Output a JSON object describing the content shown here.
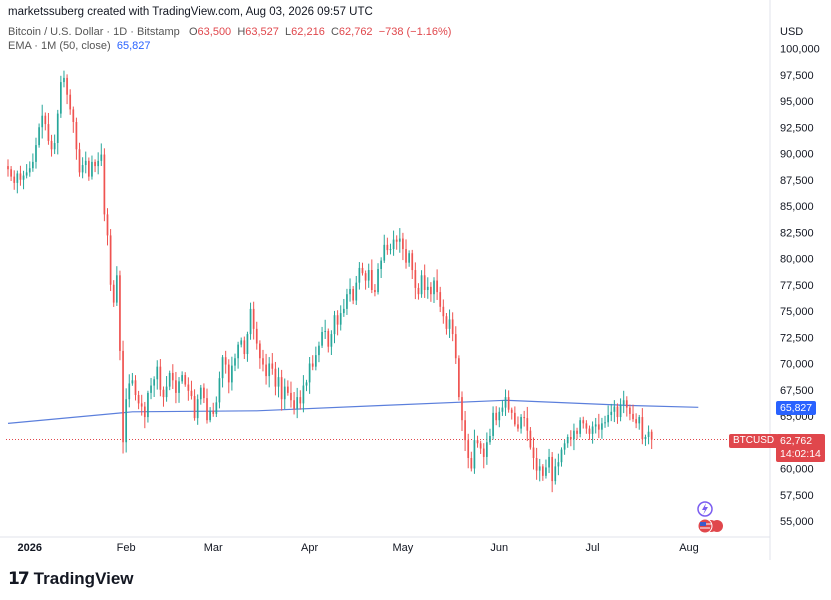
{
  "header": {
    "attribution": "marketssuberg created with TradingView.com, Aug 03, 2026 09:57 UTC",
    "symbol_desc": "Bitcoin / U.S. Dollar · 1D · Bitstamp",
    "ohlc": {
      "o_label": "O",
      "o": "63,500",
      "h_label": "H",
      "h": "63,527",
      "l_label": "L",
      "l": "62,216",
      "c_label": "C",
      "c": "62,762",
      "change": "−738 (−1.16%)"
    },
    "ema_label": "EMA · 1M (50, close)",
    "ema_value": "65,827"
  },
  "price_scale": {
    "currency": "USD"
  },
  "tags": {
    "ema_price": "65,827",
    "ticker": "BTCUSD",
    "last_price": "62,762",
    "countdown": "14:02:14"
  },
  "footer": {
    "brand": "TradingView",
    "brand_mark": "17"
  },
  "colors": {
    "up": "#26a69a",
    "down": "#ef5350",
    "ema": "#5b7fdc",
    "last_line": "#e0474c"
  },
  "chart_data": {
    "type": "candlestick",
    "ylim": [
      52500,
      102000
    ],
    "yticks": [
      55000,
      57500,
      60000,
      62500,
      65000,
      67500,
      70000,
      72500,
      75000,
      77500,
      80000,
      82500,
      85000,
      87500,
      90000,
      92500,
      95000,
      97500,
      100000
    ],
    "yticks_shown": [
      "55,000",
      "57,500",
      "60,000",
      "",
      "65,000",
      "67,500",
      "70,000",
      "72,500",
      "75,000",
      "77,500",
      "80,000",
      "82,500",
      "85,000",
      "87,500",
      "90,000",
      "92,500",
      "95,000",
      "97,500",
      "100,000"
    ],
    "xlabels": [
      {
        "label": "2026",
        "day": 7
      },
      {
        "label": "Feb",
        "day": 38
      },
      {
        "label": "Mar",
        "day": 66
      },
      {
        "label": "Apr",
        "day": 97
      },
      {
        "label": "May",
        "day": 127
      },
      {
        "label": "Jun",
        "day": 158
      },
      {
        "label": "Jul",
        "day": 188
      },
      {
        "label": "Aug",
        "day": 219
      }
    ],
    "xrange_days": [
      0,
      237
    ],
    "close_series": [
      88500,
      87800,
      87200,
      88100,
      87500,
      87900,
      88200,
      88600,
      89200,
      90800,
      92500,
      93600,
      92800,
      91200,
      90400,
      91000,
      93800,
      96800,
      97200,
      95600,
      94200,
      93000,
      90400,
      88200,
      88900,
      89300,
      87800,
      89200,
      88800,
      89300,
      89900,
      84200,
      82200,
      77500,
      75800,
      78400,
      71200,
      62500,
      66600,
      68100,
      68400,
      67000,
      66200,
      65900,
      64900,
      67200,
      67900,
      68500,
      69700,
      67500,
      66800,
      67800,
      69100,
      68400,
      67200,
      68300,
      68900,
      68000,
      67400,
      66900,
      64800,
      66600,
      67700,
      66700,
      64600,
      65500,
      65200,
      66300,
      68600,
      70600,
      69900,
      68200,
      69800,
      70500,
      71800,
      72200,
      70900,
      72800,
      75200,
      73300,
      71900,
      70500,
      69900,
      68800,
      70000,
      69500,
      67800,
      68700,
      66600,
      67800,
      67200,
      66500,
      65700,
      66800,
      66200,
      67900,
      68200,
      70000,
      69700,
      70800,
      71700,
      73000,
      73100,
      71600,
      72800,
      74600,
      73700,
      74800,
      75200,
      76600,
      77100,
      76000,
      77700,
      79100,
      78600,
      77900,
      78900,
      77000,
      76800,
      79000,
      79800,
      81300,
      80800,
      80900,
      81800,
      81600,
      81900,
      80900,
      79600,
      80500,
      78900,
      77200,
      76600,
      78400,
      77000,
      77300,
      76600,
      77900,
      76800,
      75400,
      74500,
      73300,
      74200,
      72800,
      70500,
      66800,
      64600,
      62700,
      61000,
      60000,
      62700,
      62400,
      61900,
      61100,
      62500,
      63100,
      65300,
      64600,
      65400,
      65800,
      66800,
      65600,
      65300,
      64200,
      63800,
      64900,
      64800,
      63600,
      62000,
      61000,
      59800,
      60200,
      59300,
      60100,
      61100,
      58800,
      60200,
      60600,
      61800,
      62400,
      63000,
      62800,
      63600,
      63300,
      64600,
      64300,
      63800,
      63300,
      64000,
      64200,
      63700,
      64300,
      64400,
      65100,
      65400,
      65900,
      64900,
      66100,
      66500,
      65800,
      65200,
      64700,
      64300,
      64900,
      62800,
      63000,
      63500,
      62762
    ],
    "ema_series": [
      {
        "day": 0,
        "value": 64300
      },
      {
        "day": 40,
        "value": 65400
      },
      {
        "day": 80,
        "value": 65500
      },
      {
        "day": 120,
        "value": 66000
      },
      {
        "day": 160,
        "value": 66500
      },
      {
        "day": 200,
        "value": 66000
      },
      {
        "day": 222,
        "value": 65827
      }
    ],
    "last_price": 62762,
    "ema_last": 65827
  }
}
